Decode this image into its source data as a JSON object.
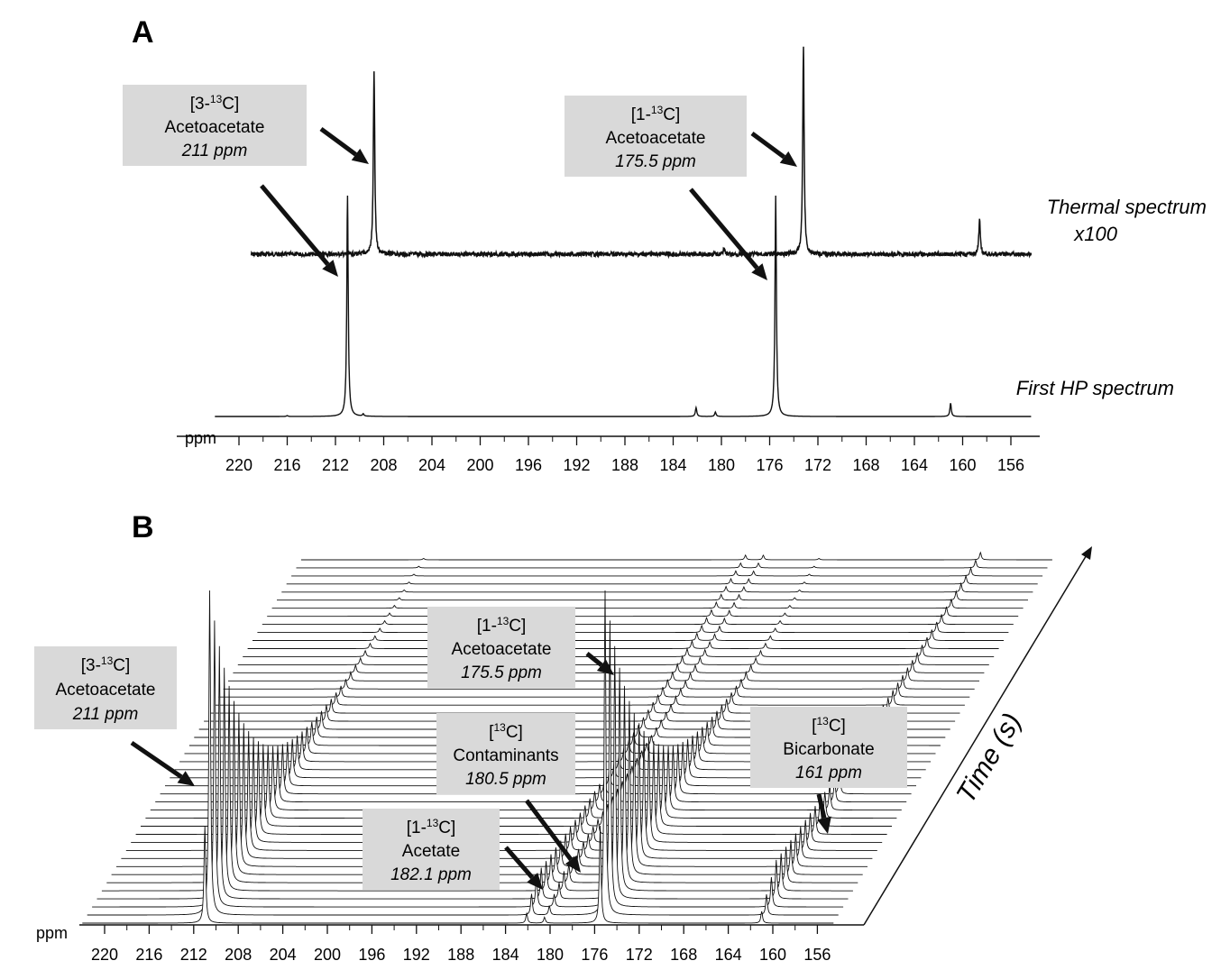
{
  "chart_data": [
    {
      "panel": "A",
      "type": "line",
      "xlabel": "ppm",
      "x_axis_reversed": true,
      "xlim": [
        222,
        154
      ],
      "x_ticks": [
        220,
        216,
        212,
        208,
        204,
        200,
        196,
        192,
        188,
        184,
        180,
        176,
        172,
        168,
        164,
        160,
        156
      ],
      "series": [
        {
          "name": "Thermal spectrum",
          "label_lines": [
            "Thermal spectrum",
            "x100"
          ],
          "noisy": true,
          "x_range": [
            219,
            154.3
          ],
          "peaks": [
            {
              "ppm": 208.8,
              "height": 0.85
            },
            {
              "ppm": 179.8,
              "height": 0.03
            },
            {
              "ppm": 173.2,
              "height": 0.96
            },
            {
              "ppm": 158.6,
              "height": 0.16
            }
          ]
        },
        {
          "name": "First HP spectrum",
          "label_lines": [
            "First HP spectrum"
          ],
          "noisy": false,
          "x_range": [
            222,
            154.3
          ],
          "peaks": [
            {
              "ppm": 216.0,
              "height": 0.004
            },
            {
              "ppm": 211.0,
              "height": 1.0
            },
            {
              "ppm": 209.7,
              "height": 0.01
            },
            {
              "ppm": 182.1,
              "height": 0.04
            },
            {
              "ppm": 180.5,
              "height": 0.02
            },
            {
              "ppm": 175.5,
              "height": 1.0
            },
            {
              "ppm": 161.0,
              "height": 0.06
            }
          ]
        }
      ],
      "annotations": [
        {
          "label": "[3-13C]",
          "iso": "13",
          "name": "Acetoacetate",
          "ppm_text": "211 ppm"
        },
        {
          "label": "[1-13C]",
          "iso": "13",
          "name": "Acetoacetate",
          "ppm_text": "175.5 ppm"
        }
      ]
    },
    {
      "panel": "B",
      "type": "line",
      "subtype": "stacked-waterfall",
      "xlabel": "ppm",
      "zlabel": "Time (s)",
      "x_axis_reversed": true,
      "xlim": [
        222,
        154
      ],
      "x_ticks": [
        220,
        216,
        212,
        208,
        204,
        200,
        196,
        192,
        188,
        184,
        180,
        176,
        172,
        168,
        164,
        160,
        156
      ],
      "n_spectra": 46,
      "peaks": [
        {
          "ppm": 211.0,
          "amplitude": 1.0,
          "t_peak": 1,
          "tau": 8
        },
        {
          "ppm": 175.5,
          "amplitude": 1.0,
          "t_peak": 1,
          "tau": 8
        },
        {
          "ppm": 182.1,
          "amplitude": 0.1,
          "t_peak": 2,
          "tau": 22
        },
        {
          "ppm": 180.5,
          "amplitude": 0.06,
          "t_peak": 4,
          "tau": 28
        },
        {
          "ppm": 161.0,
          "amplitude": 0.12,
          "t_peak": 3,
          "tau": 25
        }
      ],
      "annotations": [
        {
          "label": "[3-13C]",
          "iso": "13",
          "name": "Acetoacetate",
          "ppm_text": "211 ppm"
        },
        {
          "label": "[1-13C]",
          "iso": "13",
          "name": "Acetoacetate",
          "ppm_text": "175.5 ppm"
        },
        {
          "label": "[13C]",
          "iso": "13",
          "name": "Contaminants",
          "ppm_text": "180.5 ppm"
        },
        {
          "label": "[1-13C]",
          "iso": "13",
          "name": "Acetate",
          "ppm_text": "182.1 ppm"
        },
        {
          "label": "[13C]",
          "iso": "13",
          "name": "Bicarbonate",
          "ppm_text": "161 ppm"
        }
      ]
    }
  ]
}
